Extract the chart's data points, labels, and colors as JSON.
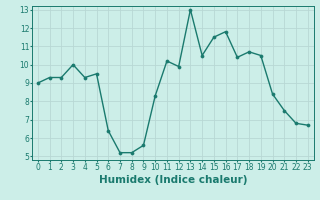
{
  "x": [
    0,
    1,
    2,
    3,
    4,
    5,
    6,
    7,
    8,
    9,
    10,
    11,
    12,
    13,
    14,
    15,
    16,
    17,
    18,
    19,
    20,
    21,
    22,
    23
  ],
  "y": [
    9.0,
    9.3,
    9.3,
    10.0,
    9.3,
    9.5,
    6.4,
    5.2,
    5.2,
    5.6,
    8.3,
    10.2,
    9.9,
    13.0,
    10.5,
    11.5,
    11.8,
    10.4,
    10.7,
    10.5,
    8.4,
    7.5,
    6.8,
    6.7
  ],
  "line_color": "#1a7a6e",
  "marker_color": "#1a7a6e",
  "bg_color": "#cceee8",
  "grid_color": "#b8d8d4",
  "xlabel": "Humidex (Indice chaleur)",
  "xlim": [
    -0.5,
    23.5
  ],
  "ylim": [
    4.8,
    13.2
  ],
  "yticks": [
    5,
    6,
    7,
    8,
    9,
    10,
    11,
    12,
    13
  ],
  "xticks": [
    0,
    1,
    2,
    3,
    4,
    5,
    6,
    7,
    8,
    9,
    10,
    11,
    12,
    13,
    14,
    15,
    16,
    17,
    18,
    19,
    20,
    21,
    22,
    23
  ],
  "tick_label_fontsize": 5.5,
  "xlabel_fontsize": 7.5,
  "linewidth": 1.0,
  "markersize": 2.2
}
